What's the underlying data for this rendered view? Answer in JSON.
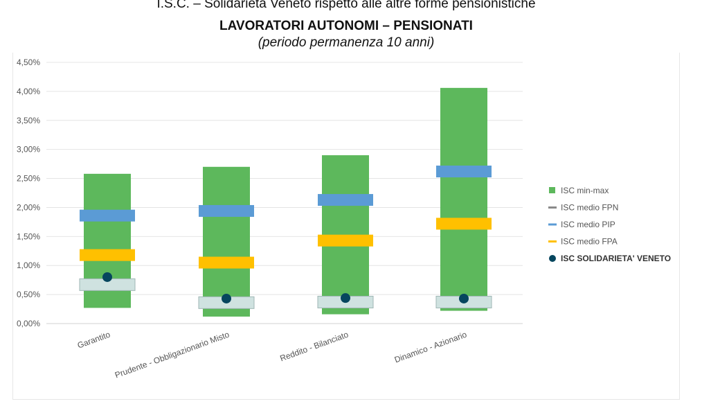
{
  "chart_data": {
    "type": "bar",
    "title_top": "I.S.C. – Solidarietà Veneto rispetto alle altre forme pensionistiche",
    "title": "LAVORATORI AUTONOMI – PENSIONATI",
    "subtitle": "(periodo permanenza 10 anni)",
    "categories": [
      "Garantito",
      "Prudente - Obbligazionario Misto",
      "Reddito - Bilanciato",
      "Dinamico - Azionario"
    ],
    "y_ticks": [
      "0,00%",
      "0,50%",
      "1,00%",
      "1,50%",
      "2,00%",
      "2,50%",
      "3,00%",
      "3,50%",
      "4,00%",
      "4,50%"
    ],
    "ylim": [
      0,
      4.5
    ],
    "grid": true,
    "legend_position": "right",
    "series": [
      {
        "name": "ISC min-max",
        "type": "range",
        "color": "#5db85c",
        "min": [
          0.27,
          0.12,
          0.16,
          0.22
        ],
        "max": [
          2.58,
          2.7,
          2.9,
          4.06
        ]
      },
      {
        "name": "ISC medio FPN",
        "type": "marker",
        "color": "#cfe2e0",
        "values": [
          0.67,
          0.36,
          0.37,
          0.37
        ]
      },
      {
        "name": "ISC medio PIP",
        "type": "marker",
        "color": "#5b9bd5",
        "values": [
          1.86,
          1.94,
          2.13,
          2.62
        ]
      },
      {
        "name": "ISC medio FPA",
        "type": "marker",
        "color": "#ffc000",
        "values": [
          1.18,
          1.05,
          1.43,
          1.72
        ]
      },
      {
        "name": "ISC SOLIDARIETA' VENETO",
        "type": "dot",
        "color": "#06465e",
        "values": [
          0.8,
          0.43,
          0.44,
          0.43
        ]
      }
    ]
  }
}
